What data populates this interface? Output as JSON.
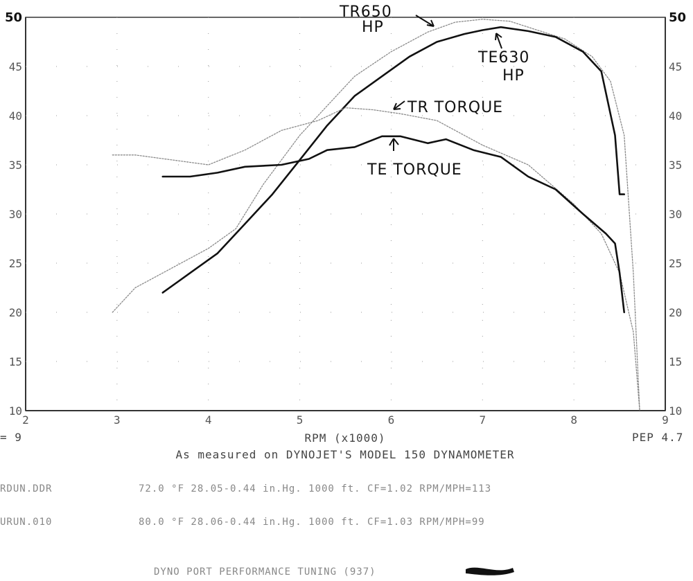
{
  "chart_data": {
    "type": "line",
    "xlabel": "RPM (x1000)",
    "x_ticks": [
      "2",
      "3",
      "4",
      "5",
      "6",
      "7",
      "8",
      "9"
    ],
    "y_ticks": [
      "10",
      "15",
      "20",
      "25",
      "30",
      "35",
      "40",
      "45",
      "50"
    ],
    "xlim": [
      2,
      9
    ],
    "ylim": [
      10,
      50
    ],
    "grid": "dotted",
    "series": [
      {
        "name": "TR650 HP",
        "style": "dotted-gray",
        "x": [
          2.95,
          3.2,
          3.6,
          4.0,
          4.3,
          4.6,
          5.0,
          5.3,
          5.6,
          6.0,
          6.4,
          6.7,
          7.0,
          7.3,
          7.6,
          7.9,
          8.2,
          8.4,
          8.55,
          8.65,
          8.72
        ],
        "y": [
          20,
          22.5,
          24.5,
          26.5,
          28.5,
          33,
          38,
          41,
          44,
          46.5,
          48.5,
          49.5,
          49.8,
          49.6,
          48.7,
          47.8,
          46,
          43.5,
          38,
          24,
          10
        ]
      },
      {
        "name": "TE630 HP",
        "style": "solid-black",
        "x": [
          3.5,
          3.8,
          4.1,
          4.4,
          4.7,
          5.0,
          5.3,
          5.6,
          5.9,
          6.2,
          6.5,
          6.8,
          7.0,
          7.2,
          7.5,
          7.8,
          8.1,
          8.3,
          8.45,
          8.5,
          8.55
        ],
        "y": [
          22,
          24,
          26,
          29,
          32,
          35.5,
          39,
          42,
          44,
          46,
          47.5,
          48.3,
          48.7,
          49,
          48.6,
          48,
          46.5,
          44.5,
          38,
          32,
          32
        ]
      },
      {
        "name": "TR TORQUE",
        "style": "dotted-gray",
        "x": [
          2.95,
          3.2,
          3.6,
          4.0,
          4.4,
          4.8,
          5.2,
          5.5,
          5.8,
          6.1,
          6.5,
          7.0,
          7.5,
          8.0,
          8.3,
          8.5,
          8.65,
          8.72
        ],
        "y": [
          36,
          36,
          35.5,
          35,
          36.5,
          38.5,
          39.5,
          40.8,
          40.6,
          40.2,
          39.5,
          37,
          35,
          31,
          28,
          24,
          18,
          10
        ]
      },
      {
        "name": "TE TORQUE",
        "style": "solid-black",
        "x": [
          3.5,
          3.8,
          4.1,
          4.4,
          4.8,
          5.1,
          5.3,
          5.6,
          5.9,
          6.1,
          6.4,
          6.6,
          6.9,
          7.2,
          7.5,
          7.8,
          8.1,
          8.35,
          8.45,
          8.5,
          8.55
        ],
        "y": [
          33.8,
          33.8,
          34.2,
          34.8,
          35,
          35.6,
          36.5,
          36.8,
          37.9,
          37.9,
          37.2,
          37.6,
          36.5,
          35.8,
          33.8,
          32.5,
          30,
          28,
          27,
          24,
          20
        ]
      }
    ],
    "annotations": [
      "TR650 HP",
      "TE630 HP",
      "TR TORQUE",
      "TE TORQUE"
    ]
  },
  "footer": {
    "left_fragment": "= 9",
    "right_fragment": "PEP 4.7",
    "measured_line": "As measured on DYNOJET'S MODEL 150 DYNAMOMETER",
    "row1_label": "RDUN.DDR",
    "row1_values": "72.0 °F   28.05-0.44 in.Hg.   1000 ft.   CF=1.02   RPM/MPH=113",
    "row2_label": "URUN.010",
    "row2_values": "80.0 °F   28.06-0.44 in.Hg.   1000 ft.   CF=1.03   RPM/MPH=99",
    "shop_line": "DYNO PORT PERFORMANCE TUNING (937)"
  },
  "annot": {
    "tr650_line1": "TR650",
    "tr650_line2": "HP",
    "te630_line1": "TE630",
    "te630_line2": "HP",
    "tr_torque": "TR TORQUE",
    "te_torque": "TE TORQUE"
  }
}
